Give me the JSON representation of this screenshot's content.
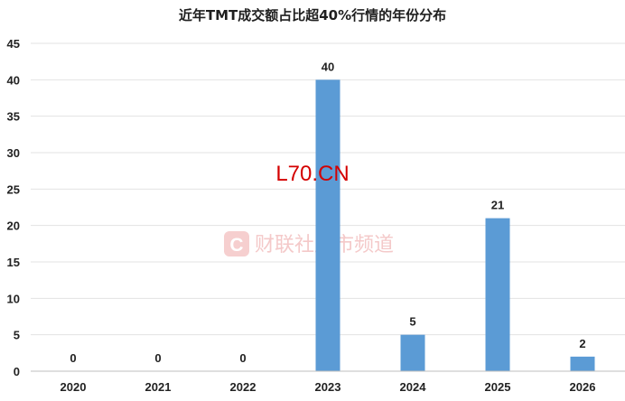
{
  "chart_data": {
    "type": "bar",
    "title": "近年TMT成交额占比超40%行情的年份分布",
    "xlabel": "",
    "ylabel": "",
    "categories": [
      "2020",
      "2021",
      "2022",
      "2023",
      "2024",
      "2025",
      "2026"
    ],
    "values": [
      0,
      0,
      0,
      40,
      5,
      21,
      2
    ],
    "ylim": [
      0,
      45
    ],
    "yticks": [
      0,
      5,
      10,
      15,
      20,
      25,
      30,
      35,
      40,
      45
    ],
    "grid": true,
    "legend": "none",
    "bar_color": "#5b9bd5"
  },
  "overlay_text": "L70.CN",
  "watermark": {
    "logo_letter": "C",
    "text": "财联社股市频道"
  }
}
